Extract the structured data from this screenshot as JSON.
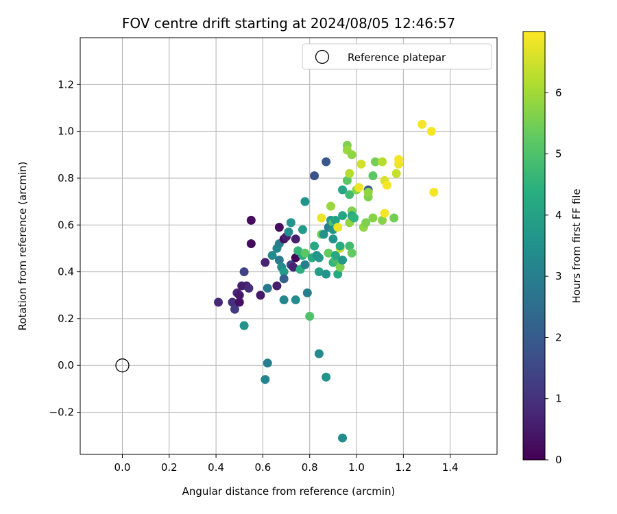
{
  "chart_data": {
    "type": "scatter",
    "title": "FOV centre drift starting at 2024/08/05 12:46:57",
    "xlabel": "Angular distance from reference (arcmin)",
    "ylabel": "Rotation from reference (arcmin)",
    "xlim": [
      -0.18,
      1.6
    ],
    "ylim": [
      -0.38,
      1.4
    ],
    "x_ticks": [
      0.0,
      0.2,
      0.4,
      0.6,
      0.8,
      1.0,
      1.2,
      1.4
    ],
    "x_tick_labels": [
      "0.0",
      "0.2",
      "0.4",
      "0.6",
      "0.8",
      "1.0",
      "1.2",
      "1.4"
    ],
    "y_ticks": [
      -0.2,
      0.0,
      0.2,
      0.4,
      0.6,
      0.8,
      1.0,
      1.2
    ],
    "y_tick_labels": [
      "−0.2",
      "0.0",
      "0.2",
      "0.4",
      "0.6",
      "0.8",
      "1.0",
      "1.2"
    ],
    "grid": true,
    "legend": {
      "placement": "top-right",
      "entries": [
        {
          "label": "Reference platepar",
          "marker": "open-circle"
        }
      ]
    },
    "reference_point": {
      "x": 0.0,
      "y": 0.0,
      "label": "Reference platepar"
    },
    "colorbar": {
      "label": "Hours from first FF file",
      "colormap": "viridis",
      "range": [
        0,
        7
      ],
      "ticks": [
        0,
        1,
        2,
        3,
        4,
        5,
        6
      ],
      "tick_labels": [
        "0",
        "1",
        "2",
        "3",
        "4",
        "5",
        "6"
      ]
    },
    "points": [
      {
        "x": 0.41,
        "y": 0.27,
        "c": 0.8
      },
      {
        "x": 0.47,
        "y": 0.27,
        "c": 0.9
      },
      {
        "x": 0.48,
        "y": 0.24,
        "c": 1.2
      },
      {
        "x": 0.49,
        "y": 0.31,
        "c": 0.8
      },
      {
        "x": 0.5,
        "y": 0.27,
        "c": 0.3
      },
      {
        "x": 0.5,
        "y": 0.3,
        "c": 0.5
      },
      {
        "x": 0.51,
        "y": 0.34,
        "c": 0.6
      },
      {
        "x": 0.52,
        "y": 0.4,
        "c": 1.4
      },
      {
        "x": 0.53,
        "y": 0.34,
        "c": 0.6
      },
      {
        "x": 0.54,
        "y": 0.33,
        "c": 0.9
      },
      {
        "x": 0.55,
        "y": 0.62,
        "c": 0.2
      },
      {
        "x": 0.55,
        "y": 0.52,
        "c": 0.2
      },
      {
        "x": 0.52,
        "y": 0.17,
        "c": 3.6
      },
      {
        "x": 0.59,
        "y": 0.3,
        "c": 0.5
      },
      {
        "x": 0.61,
        "y": 0.44,
        "c": 0.7
      },
      {
        "x": 0.62,
        "y": 0.33,
        "c": 2.8
      },
      {
        "x": 0.62,
        "y": 0.01,
        "c": 3.0
      },
      {
        "x": 0.61,
        "y": -0.06,
        "c": 3.1
      },
      {
        "x": 0.64,
        "y": 0.47,
        "c": 3.3
      },
      {
        "x": 0.66,
        "y": 0.5,
        "c": 3.2
      },
      {
        "x": 0.66,
        "y": 0.34,
        "c": 0.6
      },
      {
        "x": 0.67,
        "y": 0.52,
        "c": 3.0
      },
      {
        "x": 0.67,
        "y": 0.59,
        "c": 0.2
      },
      {
        "x": 0.67,
        "y": 0.45,
        "c": 2.9
      },
      {
        "x": 0.68,
        "y": 0.42,
        "c": 3.3
      },
      {
        "x": 0.69,
        "y": 0.4,
        "c": 3.8
      },
      {
        "x": 0.69,
        "y": 0.37,
        "c": 2.1
      },
      {
        "x": 0.69,
        "y": 0.28,
        "c": 3.2
      },
      {
        "x": 0.69,
        "y": 0.54,
        "c": 0.3
      },
      {
        "x": 0.7,
        "y": 0.55,
        "c": 0.6
      },
      {
        "x": 0.71,
        "y": 0.57,
        "c": 3.4
      },
      {
        "x": 0.72,
        "y": 0.61,
        "c": 3.6
      },
      {
        "x": 0.72,
        "y": 0.43,
        "c": 1.3
      },
      {
        "x": 0.73,
        "y": 0.42,
        "c": 0.7
      },
      {
        "x": 0.74,
        "y": 0.54,
        "c": 0.6
      },
      {
        "x": 0.74,
        "y": 0.28,
        "c": 3.4
      },
      {
        "x": 0.74,
        "y": 0.46,
        "c": 0.1
      },
      {
        "x": 0.75,
        "y": 0.49,
        "c": 4.6
      },
      {
        "x": 0.76,
        "y": 0.41,
        "c": 4.4
      },
      {
        "x": 0.77,
        "y": 0.47,
        "c": 4.4
      },
      {
        "x": 0.77,
        "y": 0.58,
        "c": 3.8
      },
      {
        "x": 0.78,
        "y": 0.48,
        "c": 5.2
      },
      {
        "x": 0.78,
        "y": 0.7,
        "c": 3.6
      },
      {
        "x": 0.78,
        "y": 0.43,
        "c": 3.0
      },
      {
        "x": 0.79,
        "y": 0.31,
        "c": 3.0
      },
      {
        "x": 0.8,
        "y": 0.21,
        "c": 5.0
      },
      {
        "x": 0.81,
        "y": 0.46,
        "c": 4.3
      },
      {
        "x": 0.82,
        "y": 0.51,
        "c": 4.2
      },
      {
        "x": 0.82,
        "y": 0.81,
        "c": 1.8
      },
      {
        "x": 0.83,
        "y": 0.47,
        "c": 3.6
      },
      {
        "x": 0.84,
        "y": 0.46,
        "c": 3.7
      },
      {
        "x": 0.84,
        "y": 0.4,
        "c": 3.9
      },
      {
        "x": 0.84,
        "y": 0.05,
        "c": 3.3
      },
      {
        "x": 0.85,
        "y": 0.56,
        "c": 5.5
      },
      {
        "x": 0.85,
        "y": 0.63,
        "c": 6.8
      },
      {
        "x": 0.86,
        "y": 0.56,
        "c": 3.5
      },
      {
        "x": 0.87,
        "y": 0.87,
        "c": 1.9
      },
      {
        "x": 0.87,
        "y": -0.05,
        "c": 3.6
      },
      {
        "x": 0.87,
        "y": 0.39,
        "c": 3.6
      },
      {
        "x": 0.88,
        "y": 0.59,
        "c": 3.0
      },
      {
        "x": 0.88,
        "y": 0.48,
        "c": 5.3
      },
      {
        "x": 0.89,
        "y": 0.68,
        "c": 5.9
      },
      {
        "x": 0.89,
        "y": 0.62,
        "c": 3.8
      },
      {
        "x": 0.9,
        "y": 0.54,
        "c": 3.6
      },
      {
        "x": 0.9,
        "y": 0.44,
        "c": 4.5
      },
      {
        "x": 0.9,
        "y": 0.61,
        "c": 5.0
      },
      {
        "x": 0.9,
        "y": 0.58,
        "c": 3.6
      },
      {
        "x": 0.91,
        "y": 0.45,
        "c": 4.8
      },
      {
        "x": 0.91,
        "y": 0.62,
        "c": 4.0
      },
      {
        "x": 0.91,
        "y": 0.47,
        "c": 4.2
      },
      {
        "x": 0.92,
        "y": 0.39,
        "c": 4.2
      },
      {
        "x": 0.92,
        "y": 0.59,
        "c": 6.8
      },
      {
        "x": 0.93,
        "y": 0.5,
        "c": 6.4
      },
      {
        "x": 0.93,
        "y": 0.51,
        "c": 4.3
      },
      {
        "x": 0.93,
        "y": 0.42,
        "c": 5.6
      },
      {
        "x": 0.94,
        "y": 0.75,
        "c": 4.1
      },
      {
        "x": 0.94,
        "y": 0.45,
        "c": 3.7
      },
      {
        "x": 0.94,
        "y": 0.64,
        "c": 4.1
      },
      {
        "x": 0.94,
        "y": -0.31,
        "c": 3.4
      },
      {
        "x": 0.96,
        "y": 0.94,
        "c": 5.6
      },
      {
        "x": 0.96,
        "y": 0.79,
        "c": 5.2
      },
      {
        "x": 0.96,
        "y": 0.92,
        "c": 5.9
      },
      {
        "x": 0.97,
        "y": 0.82,
        "c": 6.2
      },
      {
        "x": 0.97,
        "y": 0.61,
        "c": 5.8
      },
      {
        "x": 0.97,
        "y": 0.73,
        "c": 4.8
      },
      {
        "x": 0.97,
        "y": 0.51,
        "c": 4.8
      },
      {
        "x": 0.98,
        "y": 0.66,
        "c": 5.6
      },
      {
        "x": 0.98,
        "y": 0.48,
        "c": 5.3
      },
      {
        "x": 0.98,
        "y": 0.9,
        "c": 5.8
      },
      {
        "x": 0.98,
        "y": 0.64,
        "c": 4.3
      },
      {
        "x": 0.99,
        "y": 0.63,
        "c": 4.5
      },
      {
        "x": 1.0,
        "y": 0.75,
        "c": 5.7
      },
      {
        "x": 1.01,
        "y": 0.76,
        "c": 6.8
      },
      {
        "x": 1.02,
        "y": 0.86,
        "c": 6.5
      },
      {
        "x": 1.03,
        "y": 0.59,
        "c": 5.8
      },
      {
        "x": 1.04,
        "y": 0.61,
        "c": 5.6
      },
      {
        "x": 1.05,
        "y": 0.72,
        "c": 5.6
      },
      {
        "x": 1.05,
        "y": 0.75,
        "c": 2.0
      },
      {
        "x": 1.05,
        "y": 0.74,
        "c": 5.8
      },
      {
        "x": 1.07,
        "y": 0.81,
        "c": 5.2
      },
      {
        "x": 1.07,
        "y": 0.63,
        "c": 5.7
      },
      {
        "x": 1.08,
        "y": 0.87,
        "c": 5.5
      },
      {
        "x": 1.11,
        "y": 0.87,
        "c": 6.2
      },
      {
        "x": 1.11,
        "y": 0.62,
        "c": 5.7
      },
      {
        "x": 1.12,
        "y": 0.79,
        "c": 6.6
      },
      {
        "x": 1.12,
        "y": 0.65,
        "c": 6.9
      },
      {
        "x": 1.13,
        "y": 0.77,
        "c": 6.9
      },
      {
        "x": 1.16,
        "y": 0.63,
        "c": 5.5
      },
      {
        "x": 1.17,
        "y": 0.82,
        "c": 6.4
      },
      {
        "x": 1.18,
        "y": 0.86,
        "c": 6.8
      },
      {
        "x": 1.18,
        "y": 0.88,
        "c": 6.9
      },
      {
        "x": 1.28,
        "y": 1.03,
        "c": 6.9
      },
      {
        "x": 1.32,
        "y": 1.0,
        "c": 6.9
      },
      {
        "x": 1.33,
        "y": 0.74,
        "c": 6.9
      }
    ]
  }
}
